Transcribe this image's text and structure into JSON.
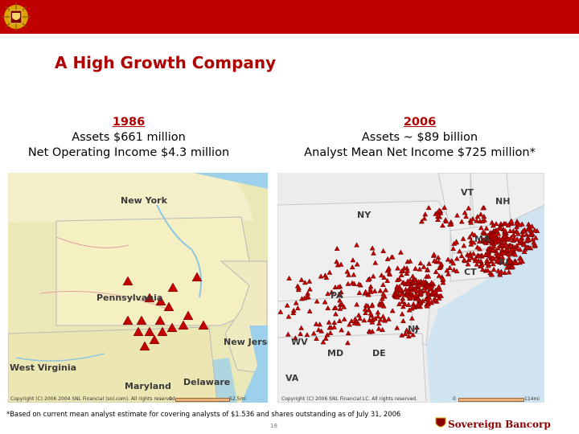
{
  "header": {
    "logo_icon": "crest-logo-icon",
    "bar_color": "#c00000"
  },
  "title": "A High Growth Company",
  "left": {
    "year": "1986",
    "line1": "Assets $661 million",
    "line2": "Net Operating Income $4.3 million",
    "map": {
      "labels": {
        "ny": "New York",
        "pa": "Pennsylvania",
        "nj": "New Jersey",
        "wv": "West Virginia",
        "md": "Maryland",
        "de": "Delaware"
      },
      "copyright": "Copyright (C) 2006 2004 SNL Financial (snl.com). All rights reserved.",
      "scale_start": "0",
      "scale_end": "52.5mi"
    }
  },
  "right": {
    "year": "2006",
    "line1": "Assets ~ $89 billion",
    "line2": "Analyst Mean Net Income $725 million*",
    "map": {
      "labels": {
        "vt": "VT",
        "nh": "NH",
        "ny": "NY",
        "ma": "MA",
        "ct": "CT",
        "ri": "RI",
        "pa": "PA",
        "nj": "NJ",
        "wv": "WV",
        "md": "MD",
        "de": "DE",
        "va": "VA"
      },
      "copyright": "Copyright (C) 2006 SNL Financial LC. All rights reserved.",
      "scale_start": "0",
      "scale_end": "114mi"
    }
  },
  "footnote": "*Based on current mean analyst estimate for covering analysts of $1.536 and shares outstanding as of July 31, 2006",
  "page_number": "18",
  "brand": "Sovereign Bancorp",
  "colors": {
    "accent": "#b00000",
    "marker": "#c40000"
  }
}
